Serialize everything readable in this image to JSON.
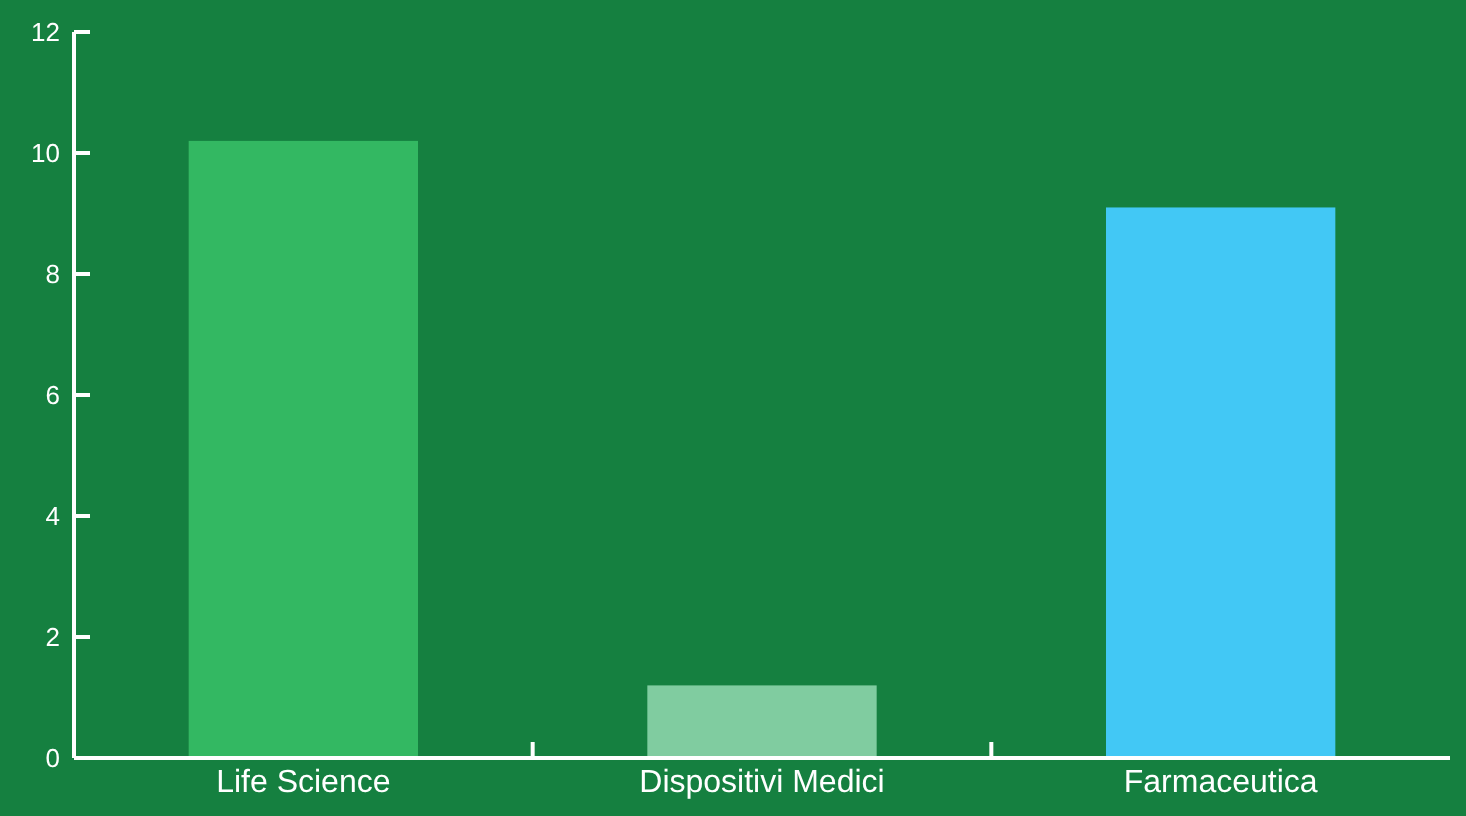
{
  "chart_data": {
    "type": "bar",
    "categories": [
      "Life Science",
      "Dispositivi Medici",
      "Farmaceutica"
    ],
    "values": [
      10.2,
      1.2,
      9.1
    ],
    "colors": [
      "#33b862",
      "#80cca0",
      "#42c8f5"
    ],
    "ylim": [
      0,
      12
    ],
    "yticks": [
      0,
      2,
      4,
      6,
      8,
      10,
      12
    ],
    "grid": false
  }
}
